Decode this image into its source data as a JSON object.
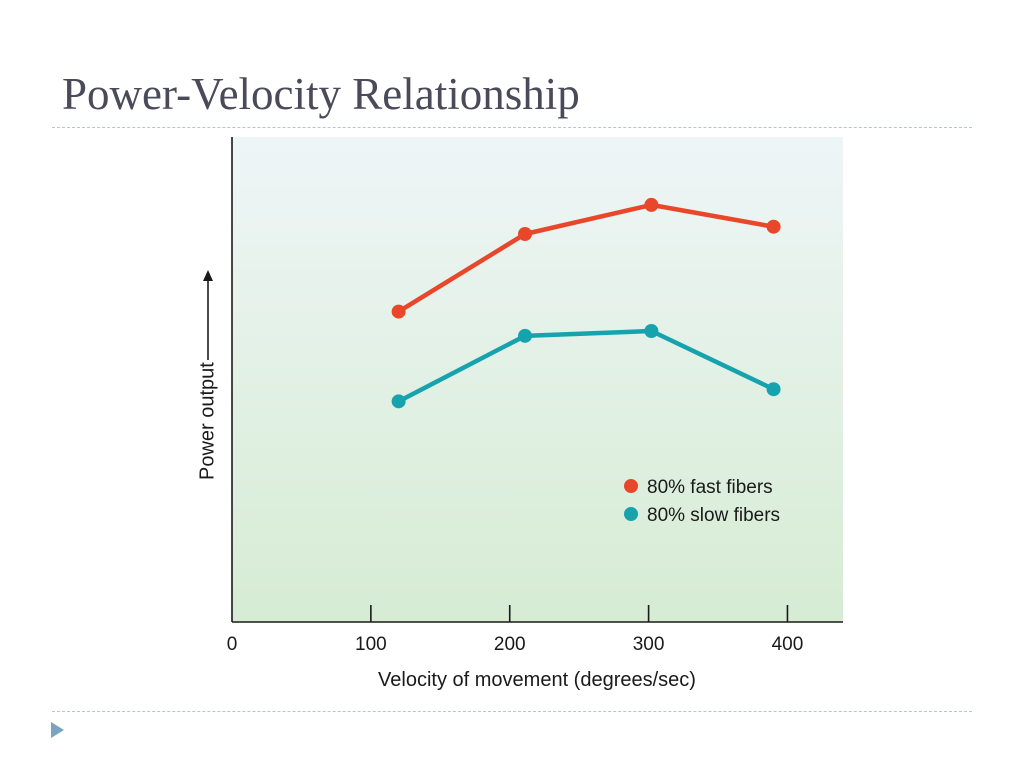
{
  "slide": {
    "title": "Power-Velocity Relationship"
  },
  "chart_data": {
    "type": "line",
    "title": "",
    "xlabel": "Velocity of movement (degrees/sec)",
    "ylabel": "Power output",
    "xlim": [
      0,
      440
    ],
    "ylim": [
      0,
      100
    ],
    "x_ticks": [
      0,
      100,
      200,
      300,
      400
    ],
    "x_tick_labels": [
      "0",
      "100",
      "200",
      "300",
      "400"
    ],
    "legend_position": "lower-right",
    "grid": false,
    "background": "light green-blue gradient",
    "series": [
      {
        "name": "80% fast fibers",
        "color": "#e8472a",
        "x": [
          120,
          211,
          302,
          390
        ],
        "y": [
          64,
          80,
          86,
          81.5
        ]
      },
      {
        "name": "80% slow fibers",
        "color": "#17a3ad",
        "x": [
          120,
          211,
          302,
          390
        ],
        "y": [
          45.5,
          59,
          60,
          48
        ]
      }
    ]
  }
}
